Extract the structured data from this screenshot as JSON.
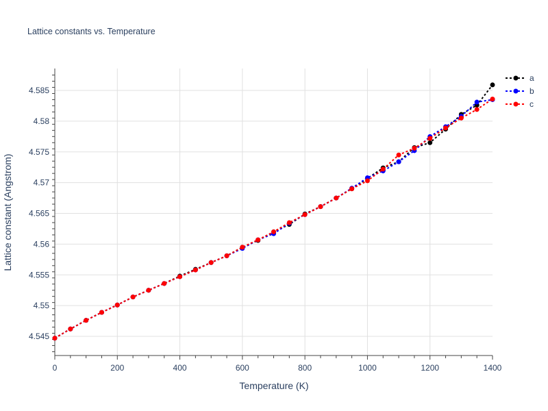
{
  "chart_data": {
    "type": "line",
    "title": "Lattice constants vs. Temperature",
    "xlabel": "Temperature (K)",
    "ylabel": "Lattice constant (Angstrom)",
    "xlim": [
      0,
      1400
    ],
    "ylim": [
      4.5418,
      4.5885
    ],
    "xticks": [
      0,
      200,
      400,
      600,
      800,
      1000,
      1200,
      1400
    ],
    "yticks": [
      4.545,
      4.55,
      4.555,
      4.56,
      4.565,
      4.57,
      4.575,
      4.58,
      4.585
    ],
    "ytick_labels": [
      "4.545",
      "4.55",
      "4.555",
      "4.56",
      "4.565",
      "4.57",
      "4.575",
      "4.58",
      "4.585"
    ],
    "grid": true,
    "legend_position": "top-right",
    "x": [
      0,
      50,
      100,
      150,
      200,
      250,
      300,
      350,
      400,
      450,
      500,
      550,
      600,
      650,
      700,
      750,
      800,
      850,
      900,
      950,
      1000,
      1050,
      1100,
      1150,
      1200,
      1250,
      1300,
      1350,
      1400
    ],
    "series": [
      {
        "name": "a",
        "color": "#000000",
        "values": [
          4.5447,
          4.5462,
          4.5476,
          4.5489,
          4.5501,
          4.5514,
          4.5525,
          4.5536,
          4.5548,
          4.5559,
          4.557,
          4.5581,
          4.5595,
          4.5606,
          4.562,
          4.5632,
          4.5649,
          4.5661,
          4.5675,
          4.569,
          4.5707,
          4.5724,
          4.5734,
          4.5757,
          4.5765,
          4.5787,
          4.5811,
          4.5826,
          4.5859
        ]
      },
      {
        "name": "b",
        "color": "#0000ff",
        "values": [
          4.5447,
          4.5462,
          4.5476,
          4.5489,
          4.5501,
          4.5514,
          4.5525,
          4.5536,
          4.5547,
          4.5558,
          4.557,
          4.5581,
          4.5593,
          4.5607,
          4.5617,
          4.5634,
          4.5648,
          4.5661,
          4.5675,
          4.5691,
          4.5708,
          4.5719,
          4.5734,
          4.5752,
          4.5775,
          4.5791,
          4.5808,
          4.5831,
          4.5835
        ]
      },
      {
        "name": "c",
        "color": "#ff0000",
        "values": [
          4.5447,
          4.5462,
          4.5476,
          4.5489,
          4.5501,
          4.5514,
          4.5525,
          4.5536,
          4.5547,
          4.5558,
          4.557,
          4.5581,
          4.5595,
          4.5607,
          4.562,
          4.5635,
          4.5648,
          4.5661,
          4.5675,
          4.569,
          4.5703,
          4.5722,
          4.5745,
          4.5756,
          4.5772,
          4.5789,
          4.5805,
          4.5819,
          4.5836
        ]
      }
    ]
  }
}
